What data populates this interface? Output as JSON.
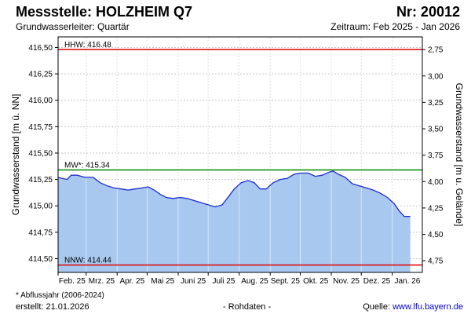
{
  "header": {
    "title": "Messstelle: HOLZHEIM Q7",
    "number": "Nr: 20012",
    "aquifer": "Grundwasserleiter: Quartär",
    "period": "Zeitraum: Feb 2025 - Jan 2026"
  },
  "footer": {
    "footnote": "* Abflussjahr (2006-2024)",
    "created": "erstellt:  21.01.2026",
    "rawdata": "- Rohdaten -",
    "source_label": "Quelle: ",
    "source_url": "www.lfu.bayern.de"
  },
  "colors": {
    "fill": "#a8c8f0",
    "line": "#1a2ecc",
    "hhw": "#e00000",
    "mw": "#008800",
    "nnw": "#e00000",
    "grid": "#c8c8c8"
  },
  "chart_data": {
    "type": "area",
    "ylabel": "Grundwasserstand [m ü. NN]",
    "ylabel_right": "Grundwasserstand [m u. Gelände]",
    "ylim": [
      414.37,
      416.6
    ],
    "yticks": [
      "416,50",
      "416,25",
      "416,00",
      "415,75",
      "415,50",
      "415,25",
      "415,00",
      "414,75",
      "414,50"
    ],
    "ytick_values": [
      416.5,
      416.25,
      416.0,
      415.75,
      415.5,
      415.25,
      415.0,
      414.75,
      414.5
    ],
    "yticks_right": [
      "2,75",
      "3,00",
      "3,25",
      "3,50",
      "3,75",
      "4,00",
      "4,25",
      "4,50",
      "4,75"
    ],
    "ytick_right_values": [
      416.48,
      416.23,
      415.98,
      415.73,
      415.48,
      415.23,
      414.98,
      414.73,
      414.48
    ],
    "x_labels": [
      "Feb. 25",
      "Mrz. 25",
      "Apr. 25",
      "Mai 25",
      "Juni 25",
      "Juli 25",
      "Aug. 25",
      "Sept. 25",
      "Okt. 25",
      "Nov. 25",
      "Dez. 25",
      "Jan. 26"
    ],
    "x_start": "2025-02-01",
    "x_end": "2026-01-31",
    "reference_lines": [
      {
        "label": "HHW: 416.48",
        "value": 416.48
      },
      {
        "label": "MW*: 415.34",
        "value": 415.34
      },
      {
        "label": "NNW: 414.44",
        "value": 414.44
      }
    ],
    "series": [
      {
        "points": [
          [
            "2025-02-01",
            415.27
          ],
          [
            "2025-02-05",
            415.26
          ],
          [
            "2025-02-10",
            415.25
          ],
          [
            "2025-02-14",
            415.29
          ],
          [
            "2025-02-20",
            415.29
          ],
          [
            "2025-02-28",
            415.27
          ],
          [
            "2025-03-08",
            415.27
          ],
          [
            "2025-03-15",
            415.22
          ],
          [
            "2025-03-22",
            415.19
          ],
          [
            "2025-03-29",
            415.17
          ],
          [
            "2025-04-05",
            415.16
          ],
          [
            "2025-04-12",
            415.15
          ],
          [
            "2025-04-19",
            415.16
          ],
          [
            "2025-04-26",
            415.17
          ],
          [
            "2025-05-02",
            415.18
          ],
          [
            "2025-05-08",
            415.15
          ],
          [
            "2025-05-14",
            415.11
          ],
          [
            "2025-05-20",
            415.08
          ],
          [
            "2025-05-27",
            415.07
          ],
          [
            "2025-06-03",
            415.08
          ],
          [
            "2025-06-10",
            415.07
          ],
          [
            "2025-06-17",
            415.05
          ],
          [
            "2025-06-24",
            415.03
          ],
          [
            "2025-07-01",
            415.01
          ],
          [
            "2025-07-08",
            414.99
          ],
          [
            "2025-07-15",
            415.01
          ],
          [
            "2025-07-20",
            415.07
          ],
          [
            "2025-07-27",
            415.16
          ],
          [
            "2025-08-03",
            415.22
          ],
          [
            "2025-08-10",
            415.24
          ],
          [
            "2025-08-16",
            415.22
          ],
          [
            "2025-08-22",
            415.16
          ],
          [
            "2025-08-28",
            415.16
          ],
          [
            "2025-09-04",
            415.22
          ],
          [
            "2025-09-11",
            415.25
          ],
          [
            "2025-09-18",
            415.26
          ],
          [
            "2025-09-25",
            415.3
          ],
          [
            "2025-10-02",
            415.31
          ],
          [
            "2025-10-09",
            415.31
          ],
          [
            "2025-10-16",
            415.28
          ],
          [
            "2025-10-23",
            415.29
          ],
          [
            "2025-10-30",
            415.32
          ],
          [
            "2025-11-03",
            415.33
          ],
          [
            "2025-11-08",
            415.3
          ],
          [
            "2025-11-15",
            415.27
          ],
          [
            "2025-11-22",
            415.21
          ],
          [
            "2025-11-29",
            415.19
          ],
          [
            "2025-12-06",
            415.17
          ],
          [
            "2025-12-13",
            415.15
          ],
          [
            "2025-12-20",
            415.12
          ],
          [
            "2025-12-27",
            415.08
          ],
          [
            "2026-01-03",
            415.02
          ],
          [
            "2026-01-08",
            414.95
          ],
          [
            "2026-01-13",
            414.9
          ],
          [
            "2026-01-19",
            414.9
          ]
        ]
      }
    ]
  }
}
